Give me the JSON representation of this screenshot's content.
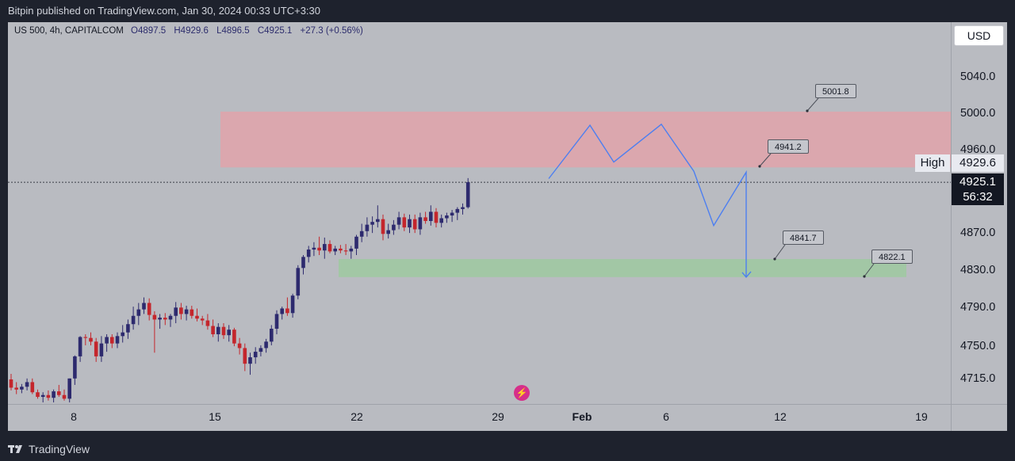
{
  "header": {
    "published_text": "Bitpin published on TradingView.com, Jan 30, 2024 00:33 UTC+3:30"
  },
  "footer": {
    "brand_text": "TradingView"
  },
  "legend": {
    "symbol": "US 500, 4h, CAPITALCOM",
    "open": "O4897.5",
    "high": "H4929.6",
    "low": "L4896.5",
    "close": "C4925.1",
    "change": "+27.3 (+0.56%)"
  },
  "currency_button": "USD",
  "price_axis": {
    "ticks": [
      "5040.0",
      "5000.0",
      "4960.0",
      "4870.0",
      "4830.0",
      "4790.0",
      "4750.0",
      "4715.0"
    ],
    "high_label": "High",
    "high_value": "4929.6",
    "last_value": "4925.1",
    "countdown": "56:32"
  },
  "time_axis": {
    "ticks": [
      "8",
      "15",
      "22",
      "29",
      "Feb",
      "6",
      "12",
      "19"
    ]
  },
  "callouts": [
    "5001.8",
    "4941.2",
    "4841.7",
    "4822.1"
  ],
  "colors": {
    "chart_bg": "#b9bbc1",
    "frame_bg": "#1e222d",
    "up_candle": "#2d2a6e",
    "down_candle": "#c4262c",
    "supply_zone": "#e0a3aa",
    "demand_zone": "#9ec9a0",
    "projection_line": "#4d7ff0"
  },
  "chart_data": {
    "type": "candlestick",
    "title": "US 500, 4h, CAPITALCOM",
    "ylim": [
      4695,
      5065
    ],
    "y_ticks": [
      5040,
      5000,
      4960,
      4870,
      4830,
      4790,
      4750,
      4715
    ],
    "x_ticks": [
      "8",
      "15",
      "22",
      "29",
      "Feb",
      "6",
      "12",
      "19"
    ],
    "last_price": 4925.1,
    "session_high": 4929.6,
    "zones": [
      {
        "kind": "supply",
        "from": 4941.2,
        "to": 5001.8
      },
      {
        "kind": "demand",
        "from": 4822.1,
        "to": 4841.7
      }
    ],
    "price_labels": [
      5001.8,
      4941.2,
      4841.7,
      4822.1
    ],
    "projection_path": [
      4929,
      4987,
      4947,
      4988,
      4937,
      4878,
      4936,
      4822
    ],
    "candles": [
      [
        4711,
        4717,
        4699,
        4702
      ],
      [
        4702,
        4708,
        4695,
        4700
      ],
      [
        4700,
        4706,
        4696,
        4703
      ],
      [
        4703,
        4712,
        4699,
        4708
      ],
      [
        4708,
        4712,
        4695,
        4697
      ],
      [
        4697,
        4700,
        4690,
        4692
      ],
      [
        4692,
        4697,
        4686,
        4694
      ],
      [
        4694,
        4699,
        4688,
        4691
      ],
      [
        4691,
        4700,
        4686,
        4698
      ],
      [
        4698,
        4705,
        4692,
        4694
      ],
      [
        4694,
        4700,
        4688,
        4690
      ],
      [
        4690,
        4712,
        4686,
        4712
      ],
      [
        4712,
        4737,
        4705,
        4736
      ],
      [
        4736,
        4758,
        4730,
        4757
      ],
      [
        4757,
        4760,
        4748,
        4756
      ],
      [
        4756,
        4762,
        4748,
        4752
      ],
      [
        4752,
        4756,
        4730,
        4736
      ],
      [
        4736,
        4758,
        4730,
        4750
      ],
      [
        4750,
        4760,
        4741,
        4757
      ],
      [
        4757,
        4760,
        4745,
        4750
      ],
      [
        4750,
        4762,
        4745,
        4758
      ],
      [
        4758,
        4770,
        4751,
        4762
      ],
      [
        4762,
        4776,
        4755,
        4771
      ],
      [
        4771,
        4790,
        4765,
        4780
      ],
      [
        4780,
        4794,
        4770,
        4787
      ],
      [
        4787,
        4800,
        4782,
        4794
      ],
      [
        4794,
        4799,
        4775,
        4781
      ],
      [
        4781,
        4785,
        4740,
        4776
      ],
      [
        4776,
        4782,
        4766,
        4778
      ],
      [
        4778,
        4783,
        4770,
        4776
      ],
      [
        4776,
        4782,
        4768,
        4780
      ],
      [
        4780,
        4795,
        4772,
        4789
      ],
      [
        4789,
        4794,
        4776,
        4782
      ],
      [
        4782,
        4791,
        4775,
        4787
      ],
      [
        4787,
        4791,
        4777,
        4780
      ],
      [
        4780,
        4788,
        4774,
        4777
      ],
      [
        4777,
        4780,
        4770,
        4775
      ],
      [
        4775,
        4782,
        4765,
        4769
      ],
      [
        4769,
        4776,
        4757,
        4760
      ],
      [
        4760,
        4772,
        4752,
        4768
      ],
      [
        4768,
        4772,
        4755,
        4759
      ],
      [
        4759,
        4770,
        4752,
        4765
      ],
      [
        4765,
        4767,
        4747,
        4750
      ],
      [
        4750,
        4756,
        4738,
        4745
      ],
      [
        4745,
        4750,
        4720,
        4728
      ],
      [
        4728,
        4740,
        4716,
        4735
      ],
      [
        4735,
        4746,
        4728,
        4741
      ],
      [
        4741,
        4748,
        4736,
        4745
      ],
      [
        4745,
        4755,
        4740,
        4752
      ],
      [
        4752,
        4770,
        4748,
        4766
      ],
      [
        4766,
        4786,
        4760,
        4782
      ],
      [
        4782,
        4790,
        4776,
        4788
      ],
      [
        4788,
        4800,
        4780,
        4783
      ],
      [
        4783,
        4804,
        4778,
        4802
      ],
      [
        4802,
        4835,
        4798,
        4832
      ],
      [
        4832,
        4846,
        4825,
        4844
      ],
      [
        4844,
        4856,
        4838,
        4852
      ],
      [
        4852,
        4860,
        4845,
        4854
      ],
      [
        4854,
        4866,
        4846,
        4851
      ],
      [
        4851,
        4865,
        4842,
        4858
      ],
      [
        4858,
        4862,
        4848,
        4850
      ],
      [
        4850,
        4856,
        4846,
        4853
      ],
      [
        4853,
        4857,
        4848,
        4851
      ],
      [
        4851,
        4858,
        4846,
        4850
      ],
      [
        4850,
        4856,
        4842,
        4853
      ],
      [
        4853,
        4868,
        4846,
        4866
      ],
      [
        4866,
        4880,
        4860,
        4872
      ],
      [
        4872,
        4887,
        4866,
        4879
      ],
      [
        4879,
        4888,
        4870,
        4882
      ],
      [
        4882,
        4900,
        4876,
        4885
      ],
      [
        4885,
        4890,
        4862,
        4869
      ],
      [
        4869,
        4880,
        4864,
        4873
      ],
      [
        4873,
        4884,
        4868,
        4879
      ],
      [
        4879,
        4893,
        4874,
        4887
      ],
      [
        4887,
        4891,
        4872,
        4876
      ],
      [
        4876,
        4890,
        4870,
        4885
      ],
      [
        4885,
        4890,
        4870,
        4874
      ],
      [
        4874,
        4892,
        4868,
        4887
      ],
      [
        4887,
        4893,
        4880,
        4883
      ],
      [
        4883,
        4900,
        4878,
        4893
      ],
      [
        4893,
        4897,
        4876,
        4881
      ],
      [
        4881,
        4890,
        4876,
        4886
      ],
      [
        4886,
        4892,
        4881,
        4889
      ],
      [
        4889,
        4895,
        4882,
        4892
      ],
      [
        4892,
        4898,
        4884,
        4896
      ],
      [
        4896,
        4902,
        4890,
        4898
      ],
      [
        4898,
        4929.6,
        4896.5,
        4925.1
      ]
    ]
  }
}
